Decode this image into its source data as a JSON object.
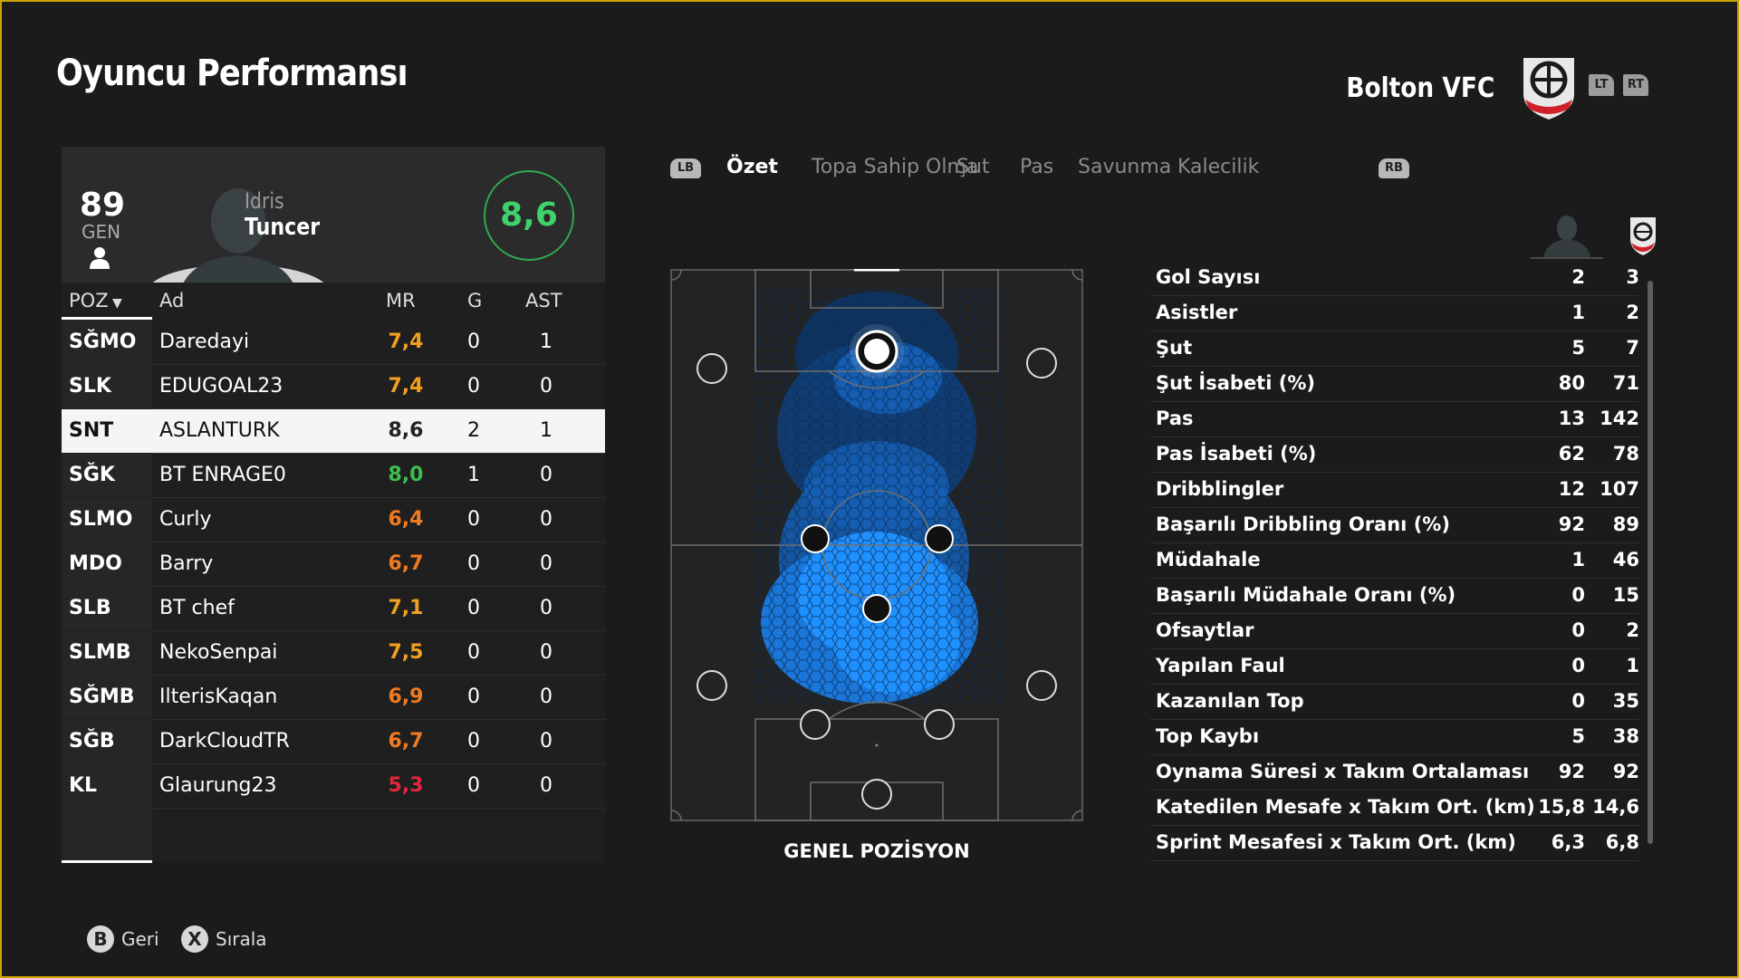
{
  "page_title": "Oyuncu Performansı",
  "club": {
    "name": "Bolton VFC",
    "lt": "LT",
    "rt": "RT"
  },
  "player": {
    "overall": "89",
    "overall_label": "GEN",
    "first_name": "Idris",
    "last_name": "Tuncer",
    "rating": "8,6"
  },
  "roster": {
    "headers": {
      "pos": "POZ",
      "name": "Ad",
      "mr": "MR",
      "g": "G",
      "ast": "AST"
    },
    "rows": [
      {
        "pos": "SĞMO",
        "name": "Daredayi",
        "mr": "7,4",
        "mr_color": "#f0a020",
        "g": "0",
        "ast": "1",
        "selected": false
      },
      {
        "pos": "SLK",
        "name": "EDUGOAL23",
        "mr": "7,4",
        "mr_color": "#f0a020",
        "g": "0",
        "ast": "0",
        "selected": false
      },
      {
        "pos": "SNT",
        "name": "ASLANTURK",
        "mr": "8,6",
        "mr_color": "#222222",
        "g": "2",
        "ast": "1",
        "selected": true
      },
      {
        "pos": "SĞK",
        "name": "BT ENRAGE0",
        "mr": "8,0",
        "mr_color": "#3cbf4e",
        "g": "1",
        "ast": "0",
        "selected": false
      },
      {
        "pos": "SLMO",
        "name": "Curly",
        "mr": "6,4",
        "mr_color": "#f07a20",
        "g": "0",
        "ast": "0",
        "selected": false
      },
      {
        "pos": "MDO",
        "name": "Barry",
        "mr": "6,7",
        "mr_color": "#f07a20",
        "g": "0",
        "ast": "0",
        "selected": false
      },
      {
        "pos": "SLB",
        "name": "BT chef",
        "mr": "7,1",
        "mr_color": "#f0a020",
        "g": "0",
        "ast": "0",
        "selected": false
      },
      {
        "pos": "SLMB",
        "name": "NekoSenpai",
        "mr": "7,5",
        "mr_color": "#f0a020",
        "g": "0",
        "ast": "0",
        "selected": false
      },
      {
        "pos": "SĞMB",
        "name": "IlterisKaqan",
        "mr": "6,9",
        "mr_color": "#f07a20",
        "g": "0",
        "ast": "0",
        "selected": false
      },
      {
        "pos": "SĞB",
        "name": "DarkCloudTR",
        "mr": "6,7",
        "mr_color": "#f07a20",
        "g": "0",
        "ast": "0",
        "selected": false
      },
      {
        "pos": "KL",
        "name": "Glaurung23",
        "mr": "5,3",
        "mr_color": "#e0283a",
        "g": "0",
        "ast": "0",
        "selected": false
      }
    ]
  },
  "tabs": {
    "lb": "LB",
    "rb": "RB",
    "items": [
      "Özet",
      "Topa Sahip Olma",
      "Şut",
      "Pas",
      "Savunma",
      "Kalecilik"
    ],
    "active": "Özet"
  },
  "pitch": {
    "caption": "GENEL POZİSYON"
  },
  "stats": [
    {
      "label": "Gol Sayısı",
      "player": "2",
      "team": "3"
    },
    {
      "label": "Asistler",
      "player": "1",
      "team": "2"
    },
    {
      "label": "Şut",
      "player": "5",
      "team": "7"
    },
    {
      "label": "Şut İsabeti (%)",
      "player": "80",
      "team": "71"
    },
    {
      "label": "Pas",
      "player": "13",
      "team": "142"
    },
    {
      "label": "Pas İsabeti (%)",
      "player": "62",
      "team": "78"
    },
    {
      "label": "Dribblingler",
      "player": "12",
      "team": "107"
    },
    {
      "label": "Başarılı Dribbling Oranı (%)",
      "player": "92",
      "team": "89"
    },
    {
      "label": "Müdahale",
      "player": "1",
      "team": "46"
    },
    {
      "label": "Başarılı Müdahale Oranı (%)",
      "player": "0",
      "team": "15"
    },
    {
      "label": "Ofsaytlar",
      "player": "0",
      "team": "2"
    },
    {
      "label": "Yapılan Faul",
      "player": "0",
      "team": "1"
    },
    {
      "label": "Kazanılan Top",
      "player": "0",
      "team": "35"
    },
    {
      "label": "Top Kaybı",
      "player": "5",
      "team": "38"
    },
    {
      "label": "Oynama Süresi x Takım Ortalaması",
      "player": "92",
      "team": "92"
    },
    {
      "label": "Katedilen Mesafe x Takım Ort. (km)",
      "player": "15,8",
      "team": "14,6"
    },
    {
      "label": "Sprint Mesafesi x Takım Ort. (km)",
      "player": "6,3",
      "team": "6,8"
    }
  ],
  "footer": {
    "b_key": "B",
    "back": "Geri",
    "x_key": "X",
    "sort": "Sırala"
  },
  "colors": {
    "accent_green": "#3fd16a",
    "frame": "#c9a400",
    "heat": "#1e90ff"
  }
}
